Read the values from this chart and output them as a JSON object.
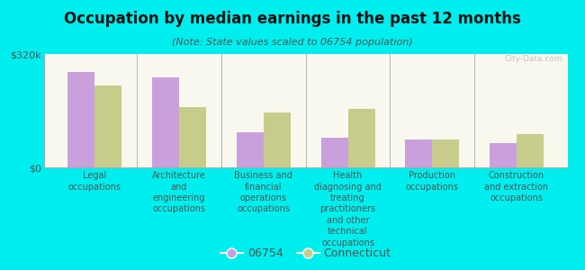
{
  "title": "Occupation by median earnings in the past 12 months",
  "subtitle": "(Note: State values scaled to 06754 population)",
  "categories": [
    "Legal\noccupations",
    "Architecture\nand\nengineering\noccupations",
    "Business and\nfinancial\noperations\noccupations",
    "Health\ndiagnosing and\ntreating\npractitioners\nand other\ntechnical\noccupations",
    "Production\noccupations",
    "Construction\nand extraction\noccupations"
  ],
  "values_06754": [
    270000,
    255000,
    100000,
    85000,
    80000,
    68000
  ],
  "values_connecticut": [
    230000,
    170000,
    155000,
    165000,
    80000,
    95000
  ],
  "color_06754": "#c9a0dc",
  "color_connecticut": "#c8cc8a",
  "background_color": "#00eeee",
  "plot_bg_top": "#e8edd8",
  "plot_bg_bottom": "#f8f8ee",
  "ylim": [
    0,
    320000
  ],
  "yticks": [
    0,
    320000
  ],
  "ytick_labels": [
    "$0",
    "$320k"
  ],
  "legend_06754": "06754",
  "legend_connecticut": "Connecticut",
  "watermark": "City-Data.com"
}
